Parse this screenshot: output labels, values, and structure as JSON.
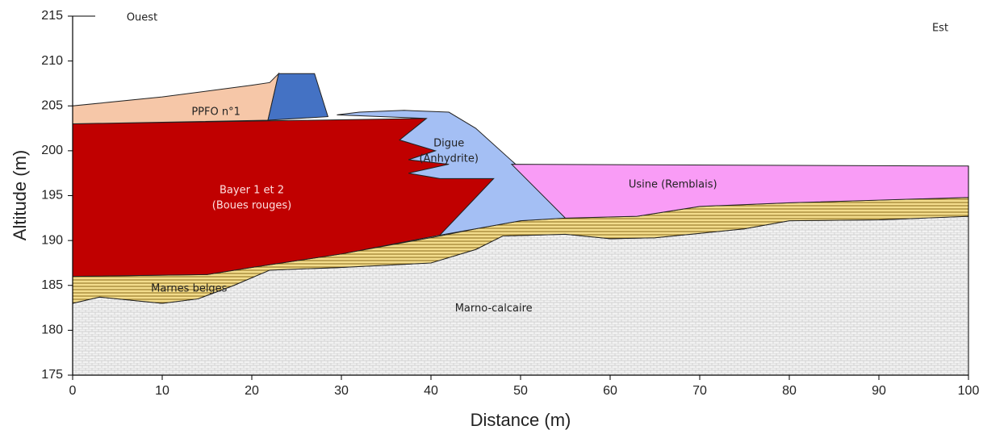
{
  "chart_data": {
    "type": "section",
    "xlabel": "Distance (m)",
    "ylabel": "Altitude (m)",
    "west": "Ouest",
    "east": "Est",
    "xlim": [
      0,
      100
    ],
    "xticks": [
      0,
      10,
      20,
      30,
      40,
      50,
      60,
      70,
      80,
      90,
      100
    ],
    "ylim": [
      175,
      215
    ],
    "yticks": [
      175,
      180,
      185,
      190,
      195,
      200,
      205,
      210,
      215
    ],
    "layers": [
      {
        "label": [
          "Marno-calcaire"
        ],
        "color": "#ececec",
        "x": [
          0,
          0,
          3,
          10,
          14,
          18,
          22,
          30,
          40,
          45,
          48,
          55,
          60,
          65,
          70,
          75,
          80,
          90,
          95,
          100,
          100
        ],
        "y": [
          175,
          183,
          183.7,
          183,
          183.5,
          185,
          186.7,
          187,
          187.5,
          189,
          190.5,
          190.7,
          190.2,
          190.3,
          190.8,
          191.3,
          192.2,
          192.3,
          192.5,
          192.7,
          175
        ]
      },
      {
        "label": [
          "Marnes belges"
        ],
        "color": "#f3dc8c",
        "x": [
          0,
          15,
          20,
          30,
          41,
          45,
          50,
          55,
          63,
          70,
          80,
          90,
          100,
          100,
          95,
          90,
          80,
          75,
          70,
          65,
          60,
          55,
          48,
          45,
          40,
          30,
          22,
          18,
          14,
          10,
          3,
          0
        ],
        "y": [
          186,
          186.2,
          187,
          188.5,
          190.5,
          191.3,
          192.2,
          192.5,
          192.7,
          193.8,
          194.2,
          194.5,
          194.8,
          192.7,
          192.5,
          192.3,
          192.2,
          191.3,
          190.8,
          190.3,
          190.2,
          190.7,
          190.5,
          189,
          187.5,
          187,
          186.7,
          185,
          183.5,
          183,
          183.7,
          183
        ]
      },
      {
        "label": [
          "Bayer 1 et 2",
          "(Boues rouges)"
        ],
        "color": "#c00000",
        "x": [
          0,
          39.5,
          36.5,
          40.5,
          37.5,
          42,
          37.5,
          41,
          47,
          41,
          30,
          20,
          15,
          0
        ],
        "y": [
          203,
          203.6,
          201.2,
          200,
          199,
          198.5,
          197.5,
          196.9,
          196.9,
          190.6,
          188.5,
          187,
          186.2,
          186
        ]
      },
      {
        "label": [
          "Digue",
          "(Anhydrite)"
        ],
        "color": "#a4bff4",
        "x": [
          29.5,
          32,
          37,
          42,
          45,
          50,
          55,
          50,
          45,
          41,
          47,
          41,
          37.5,
          42,
          37.5,
          40.5,
          36.5,
          39.5
        ],
        "y": [
          204,
          204.3,
          204.5,
          204.3,
          202.5,
          198,
          192.5,
          192.2,
          191.3,
          190.6,
          196.9,
          196.9,
          197.5,
          198.5,
          199,
          200,
          201.2,
          203.6
        ]
      },
      {
        "label": [
          "Usine (Remblais)"
        ],
        "color": "#f99cf6",
        "x": [
          49,
          100,
          100,
          90,
          80,
          70,
          63,
          55
        ],
        "y": [
          198.5,
          198.3,
          194.8,
          194.5,
          194.2,
          193.8,
          192.7,
          192.5
        ]
      },
      {
        "label": [
          "PPFO n°1"
        ],
        "color": "#f6c7a8",
        "x": [
          0,
          0,
          10,
          20,
          22,
          23,
          21.8
        ],
        "y": [
          203,
          205,
          206,
          207.3,
          207.6,
          208.6,
          203.4
        ]
      },
      {
        "color": "#4472c4",
        "x": [
          23,
          27,
          28.5,
          21.8
        ],
        "y": [
          208.6,
          208.6,
          203.8,
          203.4
        ]
      }
    ]
  }
}
